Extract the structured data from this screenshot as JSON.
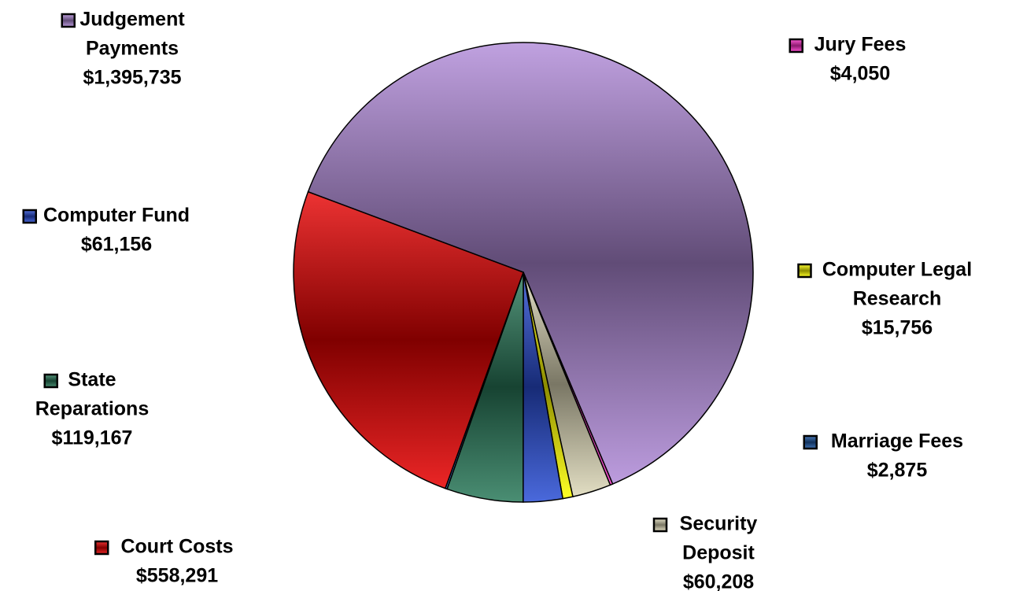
{
  "chart_data": {
    "type": "pie",
    "title": "",
    "series": [
      {
        "name": "",
        "slices": [
          {
            "label_lines": [
              "Judgement",
              "Payments"
            ],
            "amount": "$1,395,735",
            "value": 1395735,
            "color": "#b08ad8"
          },
          {
            "label_lines": [
              "Jury Fees"
            ],
            "amount": "$4,050",
            "value": 4050,
            "color": "#ff33cc"
          },
          {
            "label_lines": [
              "Security",
              "Deposit"
            ],
            "amount": "$60,208",
            "value": 60208,
            "color": "#ddd8b8"
          },
          {
            "label_lines": [
              "Computer Legal",
              "Research"
            ],
            "amount": "$15,756",
            "value": 15756,
            "color": "#ffff00"
          },
          {
            "label_lines": [
              "Computer Fund"
            ],
            "amount": "$61,156",
            "value": 61156,
            "color": "#2a4fd6"
          },
          {
            "label_lines": [
              "State",
              "Reparations"
            ],
            "amount": "$119,167",
            "value": 119167,
            "color": "#2a7a5a"
          },
          {
            "label_lines": [
              "Marriage Fees"
            ],
            "amount": "$2,875",
            "value": 2875,
            "color": "#1e5aa8"
          },
          {
            "label_lines": [
              "Court Costs"
            ],
            "amount": "$558,291",
            "value": 558291,
            "color": "#e80000"
          }
        ]
      }
    ],
    "legend": "none",
    "labels_placement": "outside"
  }
}
